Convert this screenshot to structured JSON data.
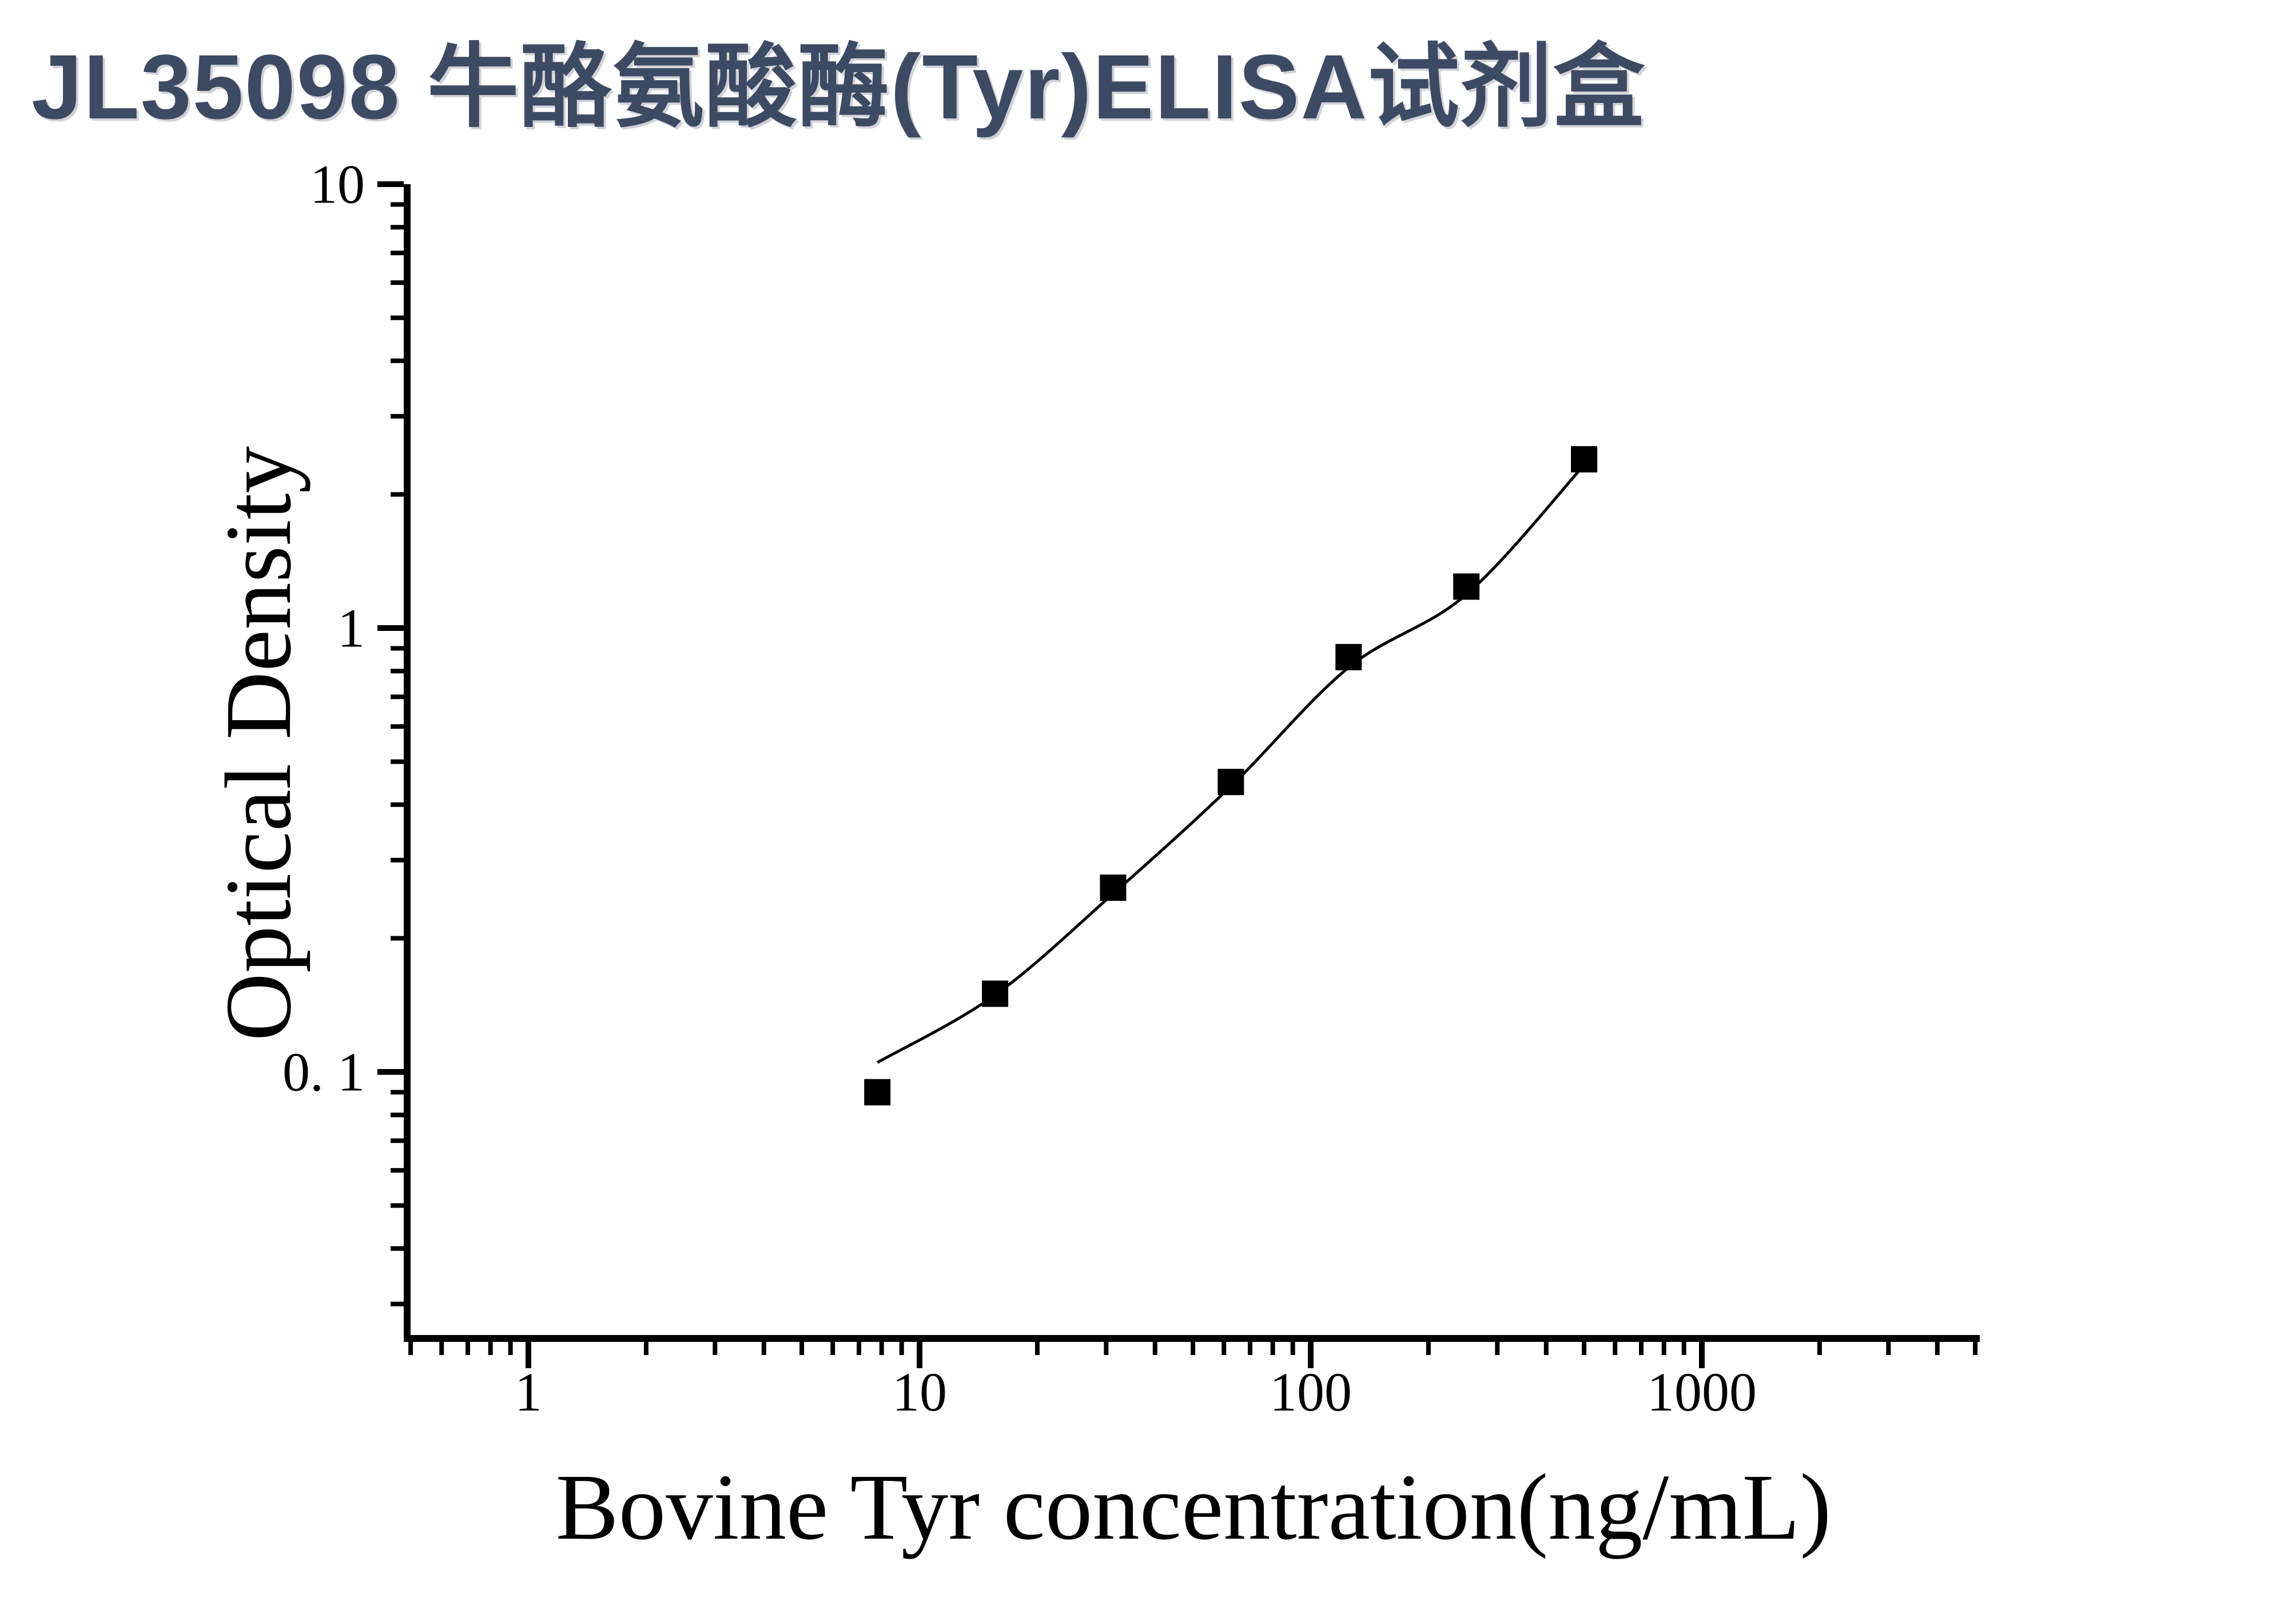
{
  "page": {
    "title": "JL35098 牛酪氨酸酶(Tyr)ELISA试剂盒",
    "title_color": "#3d4a63",
    "background": "#ffffff"
  },
  "chart_data": {
    "type": "scatter",
    "title": "JL35098 牛酪氨酸酶(Tyr)ELISA试剂盒",
    "xlabel": "Bovine Tyr concentration(ng/mL)",
    "ylabel": "Optical Density",
    "x_scale": "log",
    "y_scale": "log",
    "xlim": [
      0.5,
      5000
    ],
    "ylim": [
      0.025,
      10
    ],
    "grid": false,
    "legend": false,
    "axis_color": "#000000",
    "x_ticks": [
      {
        "value": 1,
        "label": "1"
      },
      {
        "value": 10,
        "label": "10"
      },
      {
        "value": 100,
        "label": "100"
      },
      {
        "value": 1000,
        "label": "1000"
      }
    ],
    "y_ticks": [
      {
        "value": 10,
        "label": "10"
      },
      {
        "value": 1,
        "label": "1"
      },
      {
        "value": 0.1,
        "label": "0. 1"
      }
    ],
    "series": [
      {
        "name": "standard-points",
        "type": "scatter",
        "marker": "filled-square",
        "color": "#000000",
        "x": [
          7.8,
          15.6,
          31.25,
          62.5,
          125,
          250,
          500
        ],
        "y": [
          0.09,
          0.15,
          0.26,
          0.45,
          0.86,
          1.24,
          2.4
        ]
      },
      {
        "name": "fit-curve",
        "type": "line",
        "color": "#000000",
        "x": [
          7.8,
          15.6,
          31.25,
          62.5,
          125,
          250,
          500
        ],
        "y": [
          0.105,
          0.149,
          0.252,
          0.44,
          0.815,
          1.19,
          2.33
        ]
      }
    ]
  }
}
